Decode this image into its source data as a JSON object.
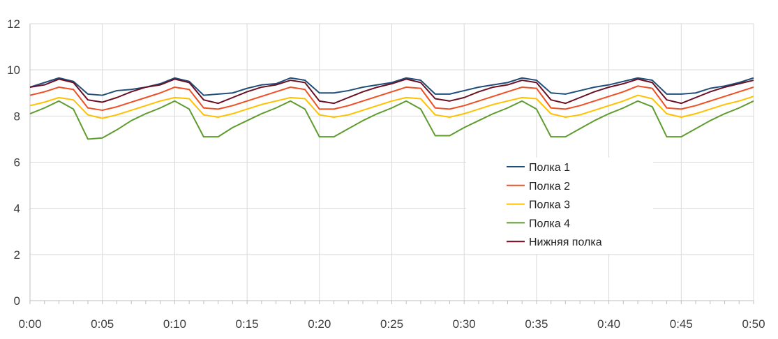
{
  "chart_data": {
    "type": "line",
    "title": "",
    "xlabel": "",
    "ylabel": "",
    "ylim": [
      0,
      12
    ],
    "yticks": [
      0,
      2,
      4,
      6,
      8,
      10,
      12
    ],
    "y_tick_labels": [
      "0",
      "2",
      "4",
      "6",
      "8",
      "10",
      "12"
    ],
    "xlim_minutes": [
      0,
      50
    ],
    "x_tick_labels": [
      "0:00",
      "0:05",
      "0:10",
      "0:15",
      "0:20",
      "0:25",
      "0:30",
      "0:35",
      "0:40",
      "0:45",
      "0:50"
    ],
    "x": [
      "0:00",
      "0:01",
      "0:02",
      "0:03",
      "0:04",
      "0:05",
      "0:06",
      "0:07",
      "0:08",
      "0:09",
      "0:10",
      "0:11",
      "0:12",
      "0:13",
      "0:14",
      "0:15",
      "0:16",
      "0:17",
      "0:18",
      "0:19",
      "0:20",
      "0:21",
      "0:22",
      "0:23",
      "0:24",
      "0:25",
      "0:26",
      "0:27",
      "0:28",
      "0:29",
      "0:30",
      "0:31",
      "0:32",
      "0:33",
      "0:34",
      "0:35",
      "0:36",
      "0:37",
      "0:38",
      "0:39",
      "0:40",
      "0:41",
      "0:42",
      "0:43",
      "0:44",
      "0:45",
      "0:46",
      "0:47",
      "0:48",
      "0:49",
      "0:50"
    ],
    "grid": true,
    "legend_position": "right",
    "series": [
      {
        "name": "Полка 1",
        "color": "#1f4e79",
        "values": [
          9.25,
          9.45,
          9.65,
          9.5,
          8.95,
          8.9,
          9.1,
          9.15,
          9.25,
          9.4,
          9.65,
          9.5,
          8.9,
          8.95,
          9.0,
          9.2,
          9.35,
          9.4,
          9.65,
          9.55,
          9.0,
          9.0,
          9.1,
          9.25,
          9.35,
          9.45,
          9.65,
          9.55,
          8.95,
          8.95,
          9.1,
          9.25,
          9.35,
          9.45,
          9.65,
          9.55,
          9.0,
          8.95,
          9.1,
          9.25,
          9.35,
          9.5,
          9.65,
          9.55,
          8.95,
          8.95,
          9.0,
          9.2,
          9.3,
          9.45,
          9.65
        ]
      },
      {
        "name": "Полка 2",
        "color": "#f04e23",
        "values": [
          8.9,
          9.05,
          9.25,
          9.15,
          8.35,
          8.25,
          8.4,
          8.6,
          8.8,
          9.0,
          9.25,
          9.15,
          8.35,
          8.3,
          8.45,
          8.65,
          8.85,
          9.05,
          9.25,
          9.15,
          8.3,
          8.3,
          8.45,
          8.65,
          8.85,
          9.05,
          9.25,
          9.2,
          8.35,
          8.3,
          8.45,
          8.65,
          8.85,
          9.05,
          9.25,
          9.2,
          8.35,
          8.3,
          8.45,
          8.65,
          8.85,
          9.05,
          9.3,
          9.2,
          8.35,
          8.3,
          8.45,
          8.65,
          8.85,
          9.05,
          9.25
        ]
      },
      {
        "name": "Полка 3",
        "color": "#ffc000",
        "values": [
          8.45,
          8.6,
          8.8,
          8.7,
          8.05,
          7.9,
          8.05,
          8.25,
          8.45,
          8.65,
          8.8,
          8.75,
          8.05,
          7.95,
          8.1,
          8.3,
          8.5,
          8.65,
          8.8,
          8.75,
          8.05,
          7.95,
          8.05,
          8.25,
          8.45,
          8.65,
          8.8,
          8.75,
          8.05,
          7.95,
          8.1,
          8.3,
          8.5,
          8.65,
          8.8,
          8.75,
          8.1,
          7.95,
          8.05,
          8.25,
          8.45,
          8.65,
          8.9,
          8.75,
          8.1,
          7.95,
          8.1,
          8.3,
          8.5,
          8.65,
          8.85
        ]
      },
      {
        "name": "Полка 4",
        "color": "#5e9c2e",
        "values": [
          8.1,
          8.35,
          8.65,
          8.3,
          7.0,
          7.05,
          7.4,
          7.8,
          8.1,
          8.35,
          8.65,
          8.3,
          7.1,
          7.1,
          7.5,
          7.8,
          8.1,
          8.35,
          8.65,
          8.3,
          7.1,
          7.1,
          7.45,
          7.8,
          8.1,
          8.35,
          8.65,
          8.3,
          7.15,
          7.15,
          7.5,
          7.8,
          8.1,
          8.35,
          8.65,
          8.3,
          7.1,
          7.1,
          7.45,
          7.8,
          8.1,
          8.35,
          8.65,
          8.4,
          7.1,
          7.1,
          7.45,
          7.8,
          8.1,
          8.35,
          8.65
        ]
      },
      {
        "name": "Нижняя полка",
        "color": "#6b0f24",
        "values": [
          9.25,
          9.35,
          9.6,
          9.45,
          8.7,
          8.6,
          8.8,
          9.05,
          9.25,
          9.35,
          9.6,
          9.45,
          8.7,
          8.55,
          8.8,
          9.05,
          9.25,
          9.35,
          9.55,
          9.45,
          8.65,
          8.55,
          8.8,
          9.05,
          9.25,
          9.4,
          9.6,
          9.45,
          8.75,
          8.65,
          8.8,
          9.05,
          9.25,
          9.35,
          9.55,
          9.45,
          8.7,
          8.55,
          8.8,
          9.05,
          9.25,
          9.4,
          9.6,
          9.45,
          8.7,
          8.55,
          8.8,
          9.05,
          9.25,
          9.4,
          9.55
        ]
      }
    ]
  }
}
